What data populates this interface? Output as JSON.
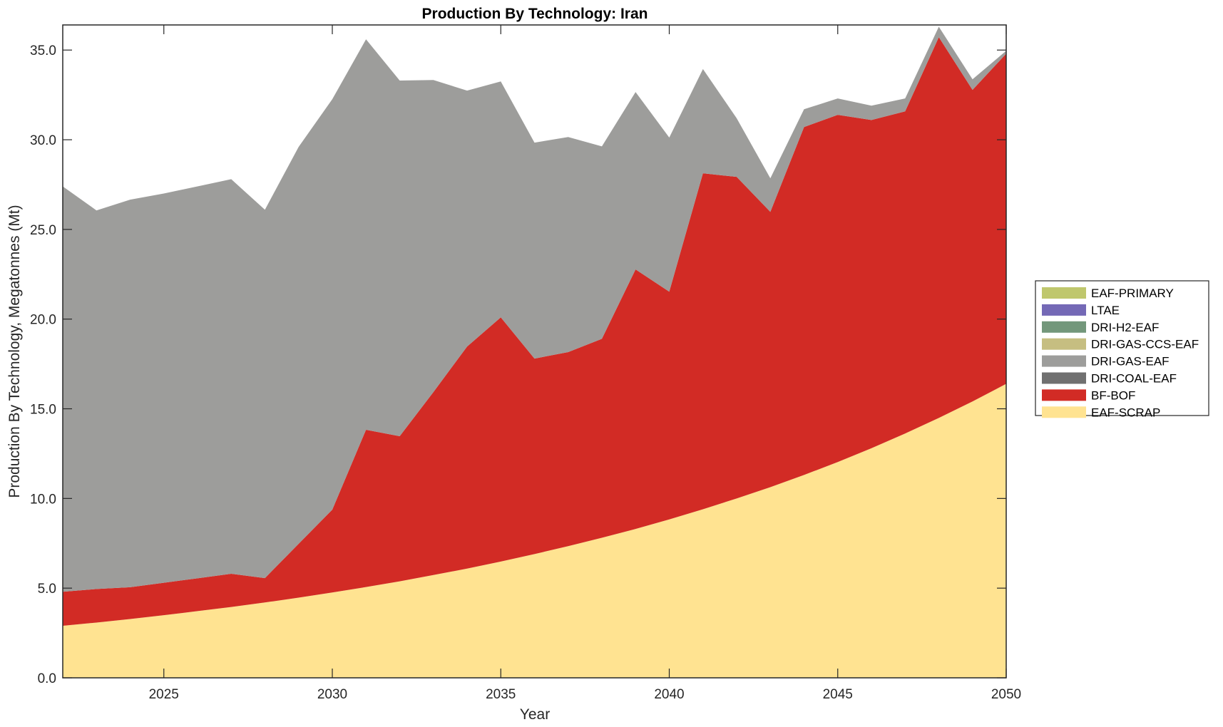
{
  "chart_data": {
    "type": "area",
    "stacked": true,
    "title": "Production By Technology: Iran",
    "xlabel": "Year",
    "ylabel": "Production By Technology, Megatonnes (Mt)",
    "xlim": [
      2022,
      2050
    ],
    "ylim": [
      0,
      36.4
    ],
    "x_ticks": [
      2025,
      2030,
      2035,
      2040,
      2045,
      2050
    ],
    "x_tick_labels": [
      "2025",
      "2030",
      "2035",
      "2040",
      "2045",
      "2050"
    ],
    "y_ticks": [
      0,
      5,
      10,
      15,
      20,
      25,
      30,
      35
    ],
    "y_tick_labels": [
      "0.0",
      "5.0",
      "10.0",
      "15.0",
      "20.0",
      "25.0",
      "30.0",
      "35.0"
    ],
    "grid": false,
    "legend_position": "right",
    "x": [
      2022,
      2023,
      2024,
      2025,
      2026,
      2027,
      2028,
      2029,
      2030,
      2031,
      2032,
      2033,
      2034,
      2035,
      2036,
      2037,
      2038,
      2039,
      2040,
      2041,
      2042,
      2043,
      2044,
      2045,
      2046,
      2047,
      2048,
      2049,
      2050
    ],
    "series": [
      {
        "name": "EAF-SCRAP",
        "color": "#FFE391",
        "values": [
          2.9,
          3.08,
          3.28,
          3.49,
          3.72,
          3.95,
          4.2,
          4.47,
          4.76,
          5.06,
          5.38,
          5.73,
          6.09,
          6.48,
          6.9,
          7.34,
          7.81,
          8.3,
          8.83,
          9.4,
          10.0,
          10.63,
          11.31,
          12.03,
          12.8,
          13.62,
          14.49,
          15.41,
          16.39
        ]
      },
      {
        "name": "BF-BOF",
        "color": "#D22B25",
        "values": [
          1.9,
          1.87,
          1.77,
          1.81,
          1.83,
          1.85,
          1.36,
          3.0,
          4.62,
          8.77,
          8.09,
          10.2,
          12.38,
          13.62,
          10.9,
          10.82,
          11.09,
          14.47,
          12.7,
          18.73,
          17.93,
          15.35,
          19.4,
          19.36,
          18.3,
          17.96,
          21.23,
          17.37,
          18.41
        ]
      },
      {
        "name": "DRI-COAL-EAF",
        "color": "#707070",
        "values": [
          0,
          0,
          0,
          0,
          0,
          0,
          0,
          0,
          0,
          0,
          0,
          0,
          0,
          0,
          0,
          0,
          0,
          0,
          0,
          0,
          0,
          0,
          0,
          0,
          0,
          0,
          0,
          0,
          0
        ]
      },
      {
        "name": "DRI-GAS-EAF",
        "color": "#9D9D9B",
        "values": [
          22.6,
          21.11,
          21.61,
          21.7,
          21.85,
          22.0,
          20.54,
          22.13,
          22.88,
          21.77,
          19.83,
          17.4,
          14.27,
          13.15,
          12.04,
          11.99,
          10.73,
          9.89,
          8.59,
          5.81,
          3.27,
          1.87,
          0.99,
          0.91,
          0.8,
          0.72,
          0.58,
          0.59,
          0.16
        ]
      },
      {
        "name": "DRI-GAS-CCS-EAF",
        "color": "#C6BE81",
        "values": [
          0,
          0,
          0,
          0,
          0,
          0,
          0,
          0,
          0,
          0,
          0,
          0,
          0,
          0,
          0,
          0,
          0,
          0,
          0,
          0,
          0,
          0,
          0,
          0,
          0,
          0,
          0,
          0,
          0
        ]
      },
      {
        "name": "DRI-H2-EAF",
        "color": "#73977B",
        "values": [
          0,
          0,
          0,
          0,
          0,
          0,
          0,
          0,
          0,
          0,
          0,
          0,
          0,
          0,
          0,
          0,
          0,
          0,
          0,
          0,
          0,
          0,
          0,
          0,
          0,
          0,
          0,
          0,
          0
        ]
      },
      {
        "name": "LTAE",
        "color": "#7469B6",
        "values": [
          0,
          0,
          0,
          0,
          0,
          0,
          0,
          0,
          0,
          0,
          0,
          0,
          0,
          0,
          0,
          0,
          0,
          0,
          0,
          0,
          0,
          0,
          0,
          0,
          0,
          0,
          0,
          0,
          0
        ]
      },
      {
        "name": "EAF-PRIMARY",
        "color": "#BFC76D",
        "values": [
          0,
          0,
          0,
          0,
          0,
          0,
          0,
          0,
          0,
          0,
          0,
          0,
          0,
          0,
          0,
          0,
          0,
          0,
          0,
          0,
          0,
          0,
          0,
          0,
          0,
          0,
          0,
          0,
          0
        ]
      }
    ],
    "legend_order": [
      "EAF-PRIMARY",
      "LTAE",
      "DRI-H2-EAF",
      "DRI-GAS-CCS-EAF",
      "DRI-GAS-EAF",
      "DRI-COAL-EAF",
      "BF-BOF",
      "EAF-SCRAP"
    ]
  }
}
